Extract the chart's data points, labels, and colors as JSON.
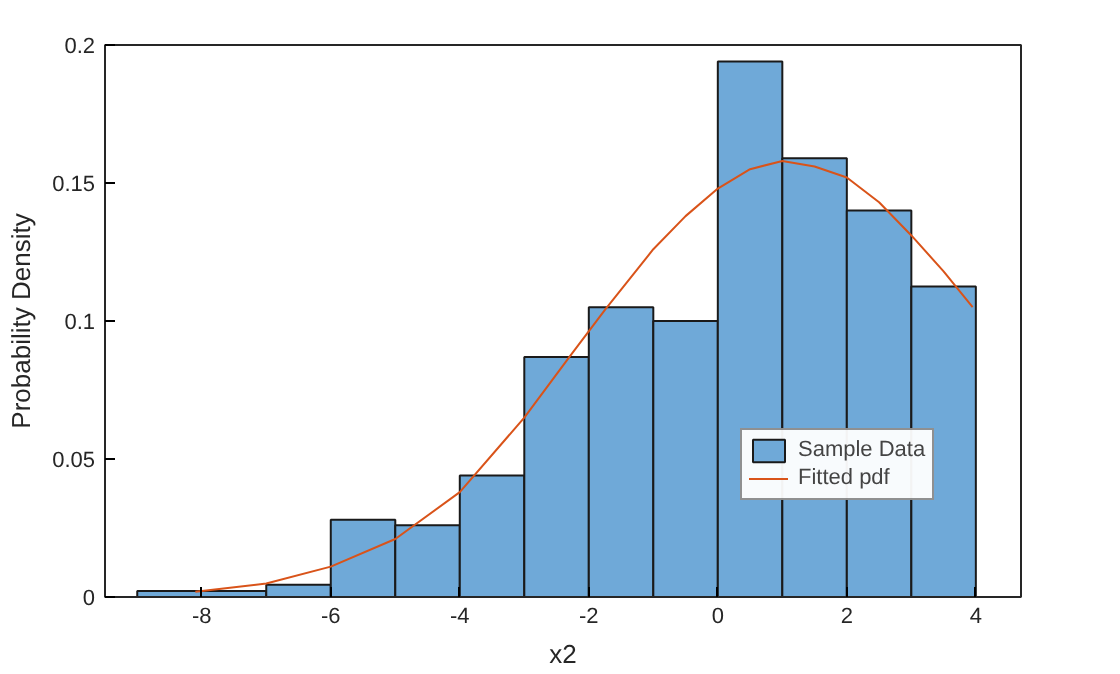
{
  "chart_data": {
    "type": "histogram",
    "xlabel": "x2",
    "ylabel": "Probability Density",
    "bins": [
      -9,
      -7,
      -6,
      -5,
      -4,
      -3,
      -2,
      -1,
      0,
      1,
      2,
      3,
      4
    ],
    "series": [
      {
        "name": "Sample Data",
        "color": "#6fa9d8",
        "values": [
          0.0022,
          0.0044,
          0.028,
          0.026,
          0.044,
          0.087,
          0.105,
          0.1,
          0.194,
          0.159,
          0.14,
          0.1125
        ]
      },
      {
        "type": "line",
        "name": "Fitted pdf",
        "color": "#d95319",
        "x": [
          -8.1,
          -7,
          -6,
          -5,
          -4,
          -3,
          -2.3,
          -1.75,
          -1,
          -0.5,
          0,
          0.5,
          1,
          1.5,
          2,
          2.5,
          3,
          3.5,
          3.95
        ],
        "values": [
          0.0019,
          0.0049,
          0.011,
          0.021,
          0.038,
          0.065,
          0.087,
          0.104,
          0.126,
          0.138,
          0.148,
          0.155,
          0.158,
          0.156,
          0.152,
          0.143,
          0.131,
          0.118,
          0.105
        ]
      }
    ],
    "xlim": [
      -9.5,
      4.7
    ],
    "xticks": [
      -8,
      -6,
      -4,
      -2,
      0,
      2,
      4
    ],
    "ylim": [
      0,
      0.2
    ],
    "yticks": [
      0,
      0.05,
      0.1,
      0.15,
      0.2
    ],
    "grid": false,
    "legend": "right"
  }
}
